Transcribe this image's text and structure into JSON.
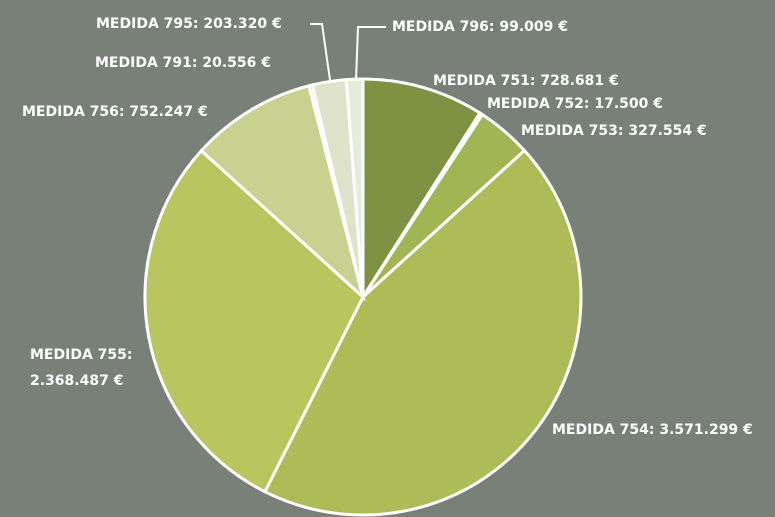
{
  "chart_data": {
    "type": "pie",
    "values": [
      728681,
      17500,
      327554,
      3571299,
      2368487,
      752247,
      20556,
      203320,
      99009
    ],
    "value_labels": [
      "MEDIDA 751: 728.681 €",
      "MEDIDA 752: 17.500 €",
      "MEDIDA 753: 327.554 €",
      "MEDIDA 754: 3.571.299 €",
      "MEDIDA 755: 2.368.487 €",
      "MEDIDA 756: 752.247 €",
      "MEDIDA 791: 20.556 €",
      "MEDIDA 795: 203.320 €",
      "MEDIDA 796: 99.009 €"
    ],
    "colors": [
      "#7f9143",
      "#93a64c",
      "#a2b453",
      "#aebc57",
      "#b9c55f",
      "#c8d190",
      "#d6dbb6",
      "#dfe3cb",
      "#e8ebdc"
    ]
  }
}
